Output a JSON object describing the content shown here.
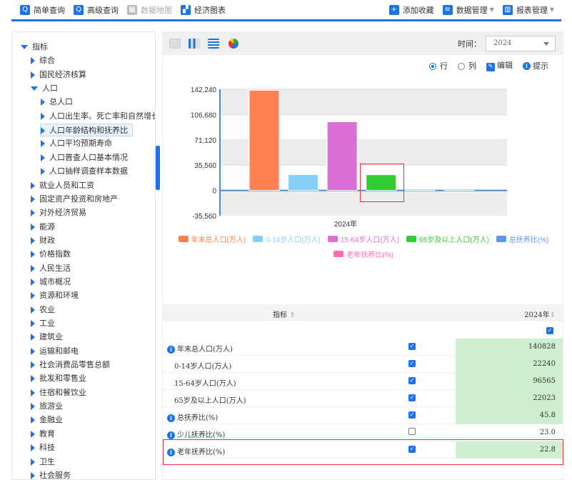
{
  "toolbar": {
    "items": [
      {
        "label": "简单查询",
        "icon": "search-icon"
      },
      {
        "label": "高级查询",
        "icon": "advanced-search-icon"
      },
      {
        "label": "数据地图",
        "icon": "map-icon",
        "disabled": true
      },
      {
        "label": "经济图表",
        "icon": "chart-icon"
      }
    ],
    "right": [
      {
        "label": "添加收藏",
        "icon": "plus-icon"
      },
      {
        "label": "数据管理",
        "icon": "data-icon"
      },
      {
        "label": "报表管理",
        "icon": "report-icon"
      }
    ]
  },
  "sidebar": {
    "nodes": [
      {
        "label": "指标",
        "level": 0,
        "open": true
      },
      {
        "label": "综合",
        "level": 1
      },
      {
        "label": "国民经济核算",
        "level": 1
      },
      {
        "label": "人口",
        "level": 1,
        "open": true
      },
      {
        "label": "总人口",
        "level": 2
      },
      {
        "label": "人口出生率、死亡率和自然增长率",
        "level": 2
      },
      {
        "label": "人口年龄结构和抚养比",
        "level": 2,
        "selected": true
      },
      {
        "label": "人口平均预期寿命",
        "level": 2
      },
      {
        "label": "人口普查人口基本情况",
        "level": 2
      },
      {
        "label": "人口抽样调查样本数据",
        "level": 2
      },
      {
        "label": "就业人员和工资",
        "level": 1
      },
      {
        "label": "固定资产投资和房地产",
        "level": 1
      },
      {
        "label": "对外经济贸易",
        "level": 1
      },
      {
        "label": "能源",
        "level": 1
      },
      {
        "label": "财政",
        "level": 1
      },
      {
        "label": "价格指数",
        "level": 1
      },
      {
        "label": "人民生活",
        "level": 1
      },
      {
        "label": "城市概况",
        "level": 1
      },
      {
        "label": "资源和环境",
        "level": 1
      },
      {
        "label": "农业",
        "level": 1
      },
      {
        "label": "工业",
        "level": 1
      },
      {
        "label": "建筑业",
        "level": 1
      },
      {
        "label": "运输和邮电",
        "level": 1
      },
      {
        "label": "社会消费品零售总额",
        "level": 1
      },
      {
        "label": "批发和零售业",
        "level": 1
      },
      {
        "label": "住宿和餐饮业",
        "level": 1
      },
      {
        "label": "旅游业",
        "level": 1
      },
      {
        "label": "金融业",
        "level": 1
      },
      {
        "label": "教育",
        "level": 1
      },
      {
        "label": "科技",
        "level": 1
      },
      {
        "label": "卫生",
        "level": 1
      },
      {
        "label": "社会服务",
        "level": 1
      }
    ]
  },
  "panel": {
    "time_label": "时间：",
    "time_value": "2024",
    "row_label": "行",
    "col_label": "列",
    "edit_label": "编辑",
    "tip_label": "提示",
    "orientation": "row"
  },
  "chart_data": {
    "type": "bar",
    "categories": [
      "2024年"
    ],
    "ylim": [
      -35560,
      142240
    ],
    "yticks": [
      "142,240",
      "106,680",
      "71,120",
      "35,560",
      "0",
      "-35,560"
    ],
    "grid": true,
    "legend_placement": "bottom",
    "series": [
      {
        "name": "年末总人口(万人)",
        "values": [
          140828
        ],
        "color": "#ff7f50"
      },
      {
        "name": "0-14岁人口(万人)",
        "values": [
          22240
        ],
        "color": "#87cefa"
      },
      {
        "name": "15-64岁人口(万人)",
        "values": [
          96565
        ],
        "color": "#da70d6"
      },
      {
        "name": "65岁及以上人口(万人)",
        "values": [
          22023
        ],
        "color": "#32cd32"
      },
      {
        "name": "总抚养比(%)",
        "values": [
          45.8
        ],
        "color": "#6495ed"
      },
      {
        "name": "老年抚养比(%)",
        "values": [
          22.8
        ],
        "color": "#ff69b4"
      }
    ]
  },
  "table": {
    "col_indicator": "指标",
    "col_year": "2024年",
    "rows": [
      {
        "label": "年末总人口(万人)",
        "info": true,
        "checked": true,
        "value": "140828"
      },
      {
        "label": "0-14岁人口(万人)",
        "info": false,
        "checked": true,
        "value": "22240"
      },
      {
        "label": "15-64岁人口(万人)",
        "info": false,
        "checked": true,
        "value": "96565"
      },
      {
        "label": "65岁及以上人口(万人)",
        "info": false,
        "checked": true,
        "value": "22023"
      },
      {
        "label": "总抚养比(%)",
        "info": true,
        "checked": true,
        "value": "45.8"
      },
      {
        "label": "少儿抚养比(%)",
        "info": true,
        "checked": false,
        "value": "23.0"
      },
      {
        "label": "老年抚养比(%)",
        "info": true,
        "checked": true,
        "value": "22.8"
      }
    ]
  }
}
